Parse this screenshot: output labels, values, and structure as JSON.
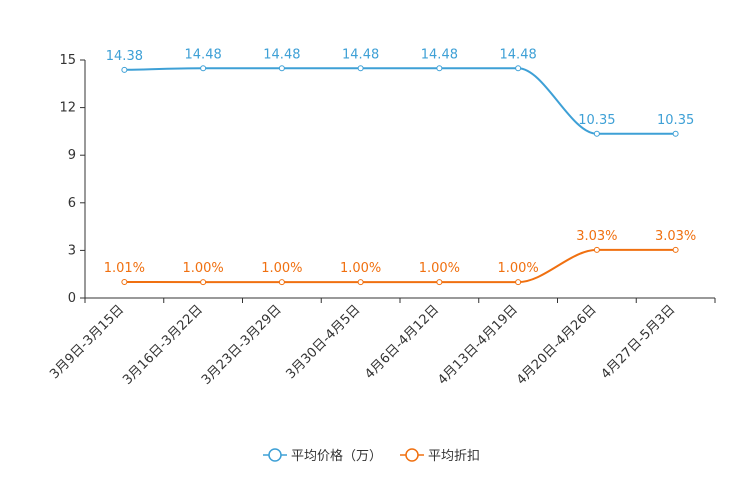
{
  "chart_data": {
    "type": "line",
    "categories": [
      "3月9日-3月15日",
      "3月16日-3月22日",
      "3月23日-3月29日",
      "3月30日-4月5日",
      "4月6日-4月12日",
      "4月13日-4月19日",
      "4月20日-4月26日",
      "4月27日-5月3日"
    ],
    "ylim": [
      0,
      15
    ],
    "yticks": [
      "0",
      "3",
      "6",
      "9",
      "12",
      "15"
    ],
    "series": [
      {
        "name": "平均价格（万）",
        "color": "#3ea0d6",
        "values": [
          14.38,
          14.48,
          14.48,
          14.48,
          14.48,
          14.48,
          10.35,
          10.35
        ],
        "labels": [
          "14.38",
          "14.48",
          "14.48",
          "14.48",
          "14.48",
          "14.48",
          "10.35",
          "10.35"
        ]
      },
      {
        "name": "平均折扣",
        "color": "#f07010",
        "values": [
          1.01,
          1.0,
          1.0,
          1.0,
          1.0,
          1.0,
          3.03,
          3.03
        ],
        "labels": [
          "1.01%",
          "1.00%",
          "1.00%",
          "1.00%",
          "1.00%",
          "1.00%",
          "3.03%",
          "3.03%"
        ]
      }
    ]
  }
}
